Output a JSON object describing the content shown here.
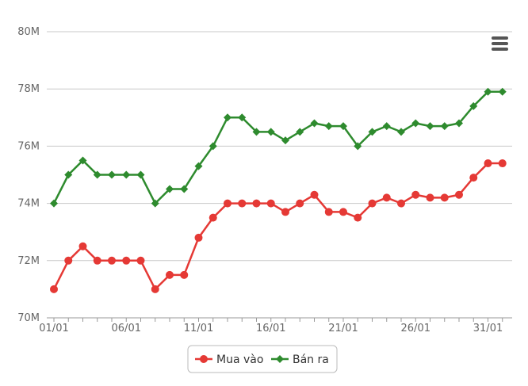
{
  "chart_data": {
    "type": "line",
    "x": [
      "01/01",
      "02/01",
      "03/01",
      "04/01",
      "05/01",
      "06/01",
      "07/01",
      "08/01",
      "09/01",
      "10/01",
      "11/01",
      "12/01",
      "13/01",
      "14/01",
      "15/01",
      "16/01",
      "17/01",
      "18/01",
      "19/01",
      "20/01",
      "21/01",
      "22/01",
      "23/01",
      "24/01",
      "25/01",
      "26/01",
      "27/01",
      "28/01",
      "29/01",
      "30/01",
      "31/01",
      "01/02"
    ],
    "x_tick_labels": [
      "01/01",
      "06/01",
      "11/01",
      "16/01",
      "21/01",
      "26/01",
      "31/01"
    ],
    "y_tick_labels": [
      "70M",
      "72M",
      "74M",
      "76M",
      "78M",
      "80M"
    ],
    "ylim": [
      70000000,
      80000000
    ],
    "grid": true,
    "legend_position": "bottom-center",
    "series": [
      {
        "name": "Mua vào",
        "color": "#e53935",
        "marker": "circle",
        "values": [
          71000000,
          72000000,
          72500000,
          72000000,
          72000000,
          72000000,
          72000000,
          71000000,
          71500000,
          71500000,
          72800000,
          73500000,
          74000000,
          74000000,
          74000000,
          74000000,
          73700000,
          74000000,
          74300000,
          73700000,
          73700000,
          73500000,
          74000000,
          74200000,
          74000000,
          74300000,
          74200000,
          74200000,
          74300000,
          74900000,
          75400000,
          75400000
        ]
      },
      {
        "name": "Bán ra",
        "color": "#2e8b2e",
        "marker": "diamond",
        "values": [
          74000000,
          75000000,
          75500000,
          75000000,
          75000000,
          75000000,
          75000000,
          74000000,
          74500000,
          74500000,
          75300000,
          76000000,
          77000000,
          77000000,
          76500000,
          76500000,
          76200000,
          76500000,
          76800000,
          76700000,
          76700000,
          76000000,
          76500000,
          76700000,
          76500000,
          76800000,
          76700000,
          76700000,
          76800000,
          77400000,
          77900000,
          77900000
        ]
      }
    ]
  },
  "menu_icon": "hamburger-menu-icon"
}
